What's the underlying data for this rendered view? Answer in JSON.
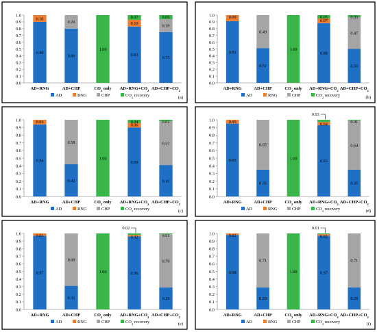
{
  "colors": {
    "AD": "#1f6fc5",
    "RNG": "#ed7d31",
    "CHP": "#a5a5a5",
    "CO2 recovery": "#3ab54a",
    "frame": "#000000",
    "axis": "#9e9e9e"
  },
  "chart_data": [
    {
      "type": "bar",
      "stacked": true,
      "panel_label": "(a)",
      "categories": [
        "AD+RNG",
        "AD+CHP",
        "CO2 only",
        "AD+RNG+CO2",
        "AD+CHP+CO2"
      ],
      "ylim": [
        0,
        1.0
      ],
      "yticks": [
        "0.0",
        "0.1",
        "0.2",
        "0.3",
        "0.4",
        "0.5",
        "0.6",
        "0.7",
        "0.8",
        "0.9",
        "1.0"
      ],
      "legend": [
        "AD",
        "RNG",
        "CHP",
        "CO2 recovery"
      ],
      "legend_position": "bottom",
      "series": [
        {
          "name": "AD",
          "values": [
            0.9,
            0.8,
            0,
            0.83,
            0.75
          ],
          "labels": [
            "0.90",
            "0.80",
            "",
            "0.83",
            "0.75"
          ]
        },
        {
          "name": "RNG",
          "values": [
            0.1,
            0,
            0,
            0.1,
            0
          ],
          "labels": [
            "0.10",
            "",
            "",
            "0.10",
            ""
          ]
        },
        {
          "name": "CHP",
          "values": [
            0,
            0.2,
            0,
            0,
            0.19
          ],
          "labels": [
            "",
            "0.20",
            "",
            "",
            "0.19"
          ]
        },
        {
          "name": "CO2 recovery",
          "values": [
            0,
            0,
            1.0,
            0.07,
            0.06
          ],
          "labels": [
            "",
            "",
            "1.00",
            "0.07",
            "0.06"
          ]
        }
      ],
      "callout": null
    },
    {
      "type": "bar",
      "stacked": true,
      "panel_label": "(b)",
      "categories": [
        "AD+RNG",
        "AD+CHP",
        "CO2 only",
        "AD+RNG+CO2",
        "AD+CHP+CO2"
      ],
      "ylim": [
        0,
        1.0
      ],
      "yticks": [
        "0.0",
        "0.1",
        "0.2",
        "0.3",
        "0.4",
        "0.5",
        "0.6",
        "0.7",
        "0.8",
        "0.9",
        "1.0"
      ],
      "legend": [
        "AD",
        "RNG",
        "CHP",
        "CO2 recovery"
      ],
      "legend_position": "bottom",
      "series": [
        {
          "name": "AD",
          "values": [
            0.91,
            0.51,
            0,
            0.88,
            0.5
          ],
          "labels": [
            "0.91",
            "0.51",
            "",
            "0.88",
            "0.50"
          ]
        },
        {
          "name": "RNG",
          "values": [
            0.09,
            0,
            0,
            0.07,
            0
          ],
          "labels": [
            "0.09",
            "",
            "",
            "0.07",
            ""
          ]
        },
        {
          "name": "CHP",
          "values": [
            0,
            0.49,
            0,
            0,
            0.47
          ],
          "labels": [
            "",
            "0.49",
            "",
            "",
            "0.47"
          ]
        },
        {
          "name": "CO2 recovery",
          "values": [
            0,
            0,
            1.0,
            0.05,
            0.03
          ],
          "labels": [
            "",
            "",
            "1.00",
            "0.05",
            "0.03"
          ]
        }
      ],
      "callout": null
    },
    {
      "type": "bar",
      "stacked": true,
      "panel_label": "(c)",
      "categories": [
        "AD+RNG",
        "AD+CHP",
        "CO2 only",
        "AD+RNG+CO2",
        "AD+CHP+CO2"
      ],
      "ylim": [
        0,
        1.0
      ],
      "yticks": [
        "0.0",
        "0.1",
        "0.2",
        "0.3",
        "0.4",
        "0.5",
        "0.6",
        "0.7",
        "0.8",
        "0.9",
        "1.0"
      ],
      "legend": [
        "AD",
        "RNG",
        "CHP",
        "CO2 recovery"
      ],
      "legend_position": "bottom",
      "series": [
        {
          "name": "AD",
          "values": [
            0.94,
            0.42,
            0,
            0.9,
            0.41
          ],
          "labels": [
            "0.94",
            "0.42",
            "",
            "0.90",
            "0.41"
          ]
        },
        {
          "name": "RNG",
          "values": [
            0.06,
            0,
            0,
            0.06,
            0
          ],
          "labels": [
            "0.06",
            "",
            "",
            "0.06",
            ""
          ]
        },
        {
          "name": "CHP",
          "values": [
            0,
            0.58,
            0,
            0,
            0.57
          ],
          "labels": [
            "",
            "0.58",
            "",
            "",
            "0.57"
          ]
        },
        {
          "name": "CO2 recovery",
          "values": [
            0,
            0,
            1.0,
            0.04,
            0.02
          ],
          "labels": [
            "",
            "",
            "1.00",
            "0.04",
            "0.02"
          ]
        }
      ],
      "callout": null
    },
    {
      "type": "bar",
      "stacked": true,
      "panel_label": "(d)",
      "categories": [
        "AD+RNG",
        "AD+CHP",
        "CO2 only",
        "AD+RNG+CO2",
        "AD+CHP+CO2"
      ],
      "ylim": [
        0,
        1.0
      ],
      "yticks": [
        "0.0",
        "0.1",
        "0.2",
        "0.3",
        "0.4",
        "0.5",
        "0.6",
        "0.7",
        "0.8",
        "0.9",
        "1.0"
      ],
      "legend": [
        "AD",
        "RNG",
        "CHP",
        "CO2 recovery"
      ],
      "legend_position": "bottom",
      "series": [
        {
          "name": "AD",
          "values": [
            0.95,
            0.35,
            0,
            0.93,
            0.35
          ],
          "labels": [
            "0.95",
            "0.35",
            "",
            "0.93",
            "0.35"
          ]
        },
        {
          "name": "RNG",
          "values": [
            0.05,
            0,
            0,
            0.04,
            0
          ],
          "labels": [
            "0.05",
            "",
            "",
            "0.04",
            ""
          ]
        },
        {
          "name": "CHP",
          "values": [
            0,
            0.65,
            0,
            0,
            0.64
          ],
          "labels": [
            "",
            "0.65",
            "",
            "",
            "0.64"
          ]
        },
        {
          "name": "CO2 recovery",
          "values": [
            0,
            0,
            1.0,
            0.03,
            0.01
          ],
          "labels": [
            "",
            "",
            "1.00",
            "",
            "0.01"
          ]
        }
      ],
      "callout": {
        "text": "0.03",
        "category_index": 3
      }
    },
    {
      "type": "bar",
      "stacked": true,
      "panel_label": "(e)",
      "categories": [
        "AD+RNG",
        "AD+CHP",
        "CO2 only",
        "AD+RNG+CO2",
        "AD+CHP+CO2"
      ],
      "ylim": [
        0,
        1.0
      ],
      "yticks": [
        "0.0",
        "0.1",
        "0.2",
        "0.3",
        "0.4",
        "0.5",
        "0.6",
        "0.7",
        "0.8",
        "0.9",
        "1.0"
      ],
      "legend": [
        "AD",
        "RNG",
        "CHP",
        "CO2 recovery"
      ],
      "legend_position": "bottom",
      "series": [
        {
          "name": "AD",
          "values": [
            0.97,
            0.31,
            0,
            0.96,
            0.29
          ],
          "labels": [
            "0.97",
            "0.31",
            "",
            "0.96",
            "0.29"
          ]
        },
        {
          "name": "RNG",
          "values": [
            0.03,
            0,
            0,
            0.02,
            0
          ],
          "labels": [
            "0.03",
            "",
            "",
            "0.02",
            ""
          ]
        },
        {
          "name": "CHP",
          "values": [
            0,
            0.69,
            0,
            0,
            0.7
          ],
          "labels": [
            "",
            "0.69",
            "",
            "",
            "0.70"
          ]
        },
        {
          "name": "CO2 recovery",
          "values": [
            0,
            0,
            1.0,
            0.02,
            0.01
          ],
          "labels": [
            "",
            "",
            "1.00",
            "",
            "0.01"
          ]
        }
      ],
      "callout": {
        "text": "0.02",
        "category_index": 3
      }
    },
    {
      "type": "bar",
      "stacked": true,
      "panel_label": "(f)",
      "categories": [
        "AD+RNG",
        "AD+CHP",
        "CO2 only",
        "AD+RNG+CO2",
        "AD+CHP+CO2"
      ],
      "ylim": [
        0,
        1.0
      ],
      "yticks": [
        "0.0",
        "0.1",
        "0.2",
        "0.3",
        "0.4",
        "0.5",
        "0.6",
        "0.7",
        "0.8",
        "0.9",
        "1.0"
      ],
      "legend": [
        "AD",
        "RNG",
        "CHP",
        "CO2 recovery"
      ],
      "legend_position": "bottom",
      "series": [
        {
          "name": "AD",
          "values": [
            0.98,
            0.29,
            0,
            0.97,
            0.29
          ],
          "labels": [
            "0.98",
            "0.29",
            "",
            "0.97",
            "0.29"
          ]
        },
        {
          "name": "RNG",
          "values": [
            0.02,
            0,
            0,
            0.02,
            0
          ],
          "labels": [
            "0.02",
            "",
            "",
            "0.02",
            ""
          ]
        },
        {
          "name": "CHP",
          "values": [
            0,
            0.71,
            0,
            0,
            0.71
          ],
          "labels": [
            "",
            "0.71",
            "",
            "",
            "0.71"
          ]
        },
        {
          "name": "CO2 recovery",
          "values": [
            0,
            0,
            1.0,
            0.01,
            0.0
          ],
          "labels": [
            "",
            "",
            "1.00",
            "",
            "0.00"
          ]
        }
      ],
      "callout": {
        "text": "0.01",
        "category_index": 3
      }
    }
  ]
}
